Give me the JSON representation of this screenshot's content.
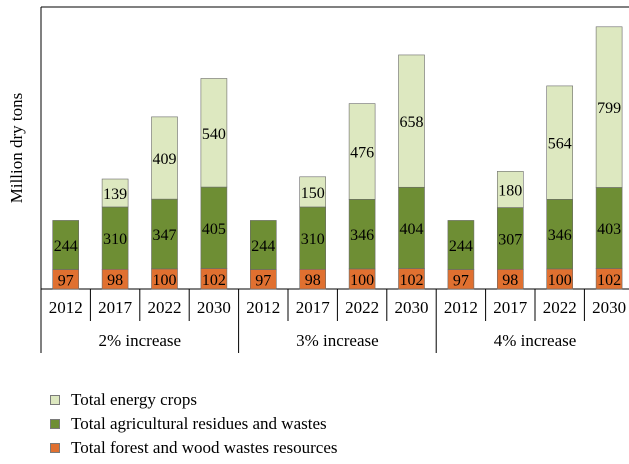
{
  "chart_data": {
    "type": "bar",
    "stacked": true,
    "title": "",
    "xlabel": "",
    "ylabel": "Million dry tons",
    "groups": [
      {
        "label": "2% increase",
        "categories": [
          "2012",
          "2017",
          "2022",
          "2030"
        ]
      },
      {
        "label": "3% increase",
        "categories": [
          "2012",
          "2017",
          "2022",
          "2030"
        ]
      },
      {
        "label": "4% increase",
        "categories": [
          "2012",
          "2017",
          "2022",
          "2030"
        ]
      }
    ],
    "series": [
      {
        "name": "Total forest and wood wastes resources",
        "color": "#e07030",
        "values": [
          97,
          98,
          100,
          102,
          97,
          98,
          100,
          102,
          97,
          98,
          100,
          102
        ]
      },
      {
        "name": "Total agricultural residues and wastes",
        "color": "#6e8e34",
        "values": [
          244,
          310,
          347,
          405,
          244,
          310,
          346,
          404,
          244,
          307,
          346,
          403
        ]
      },
      {
        "name": "Total energy crops",
        "color": "#dde8c0",
        "values": [
          null,
          139,
          409,
          540,
          null,
          150,
          476,
          658,
          null,
          180,
          564,
          799
        ]
      }
    ],
    "legend_position": "bottom-left",
    "legend_order": [
      "Total energy crops",
      "Total agricultural residues and wastes",
      "Total forest and wood wastes resources"
    ],
    "grid": false
  }
}
